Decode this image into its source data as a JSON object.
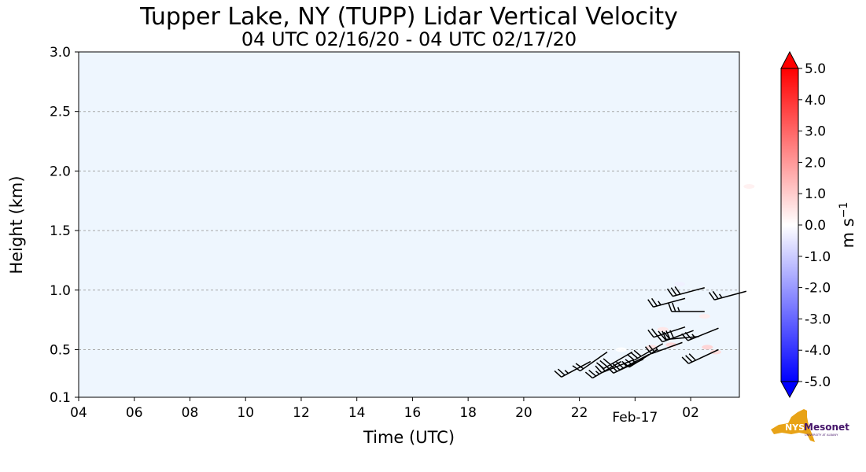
{
  "chart_data": {
    "type": "heatmap",
    "title": "Tupper Lake, NY (TUPP) Lidar Vertical Velocity",
    "subtitle": "04 UTC 02/16/20 - 04 UTC 02/17/20",
    "xlabel": "Time (UTC)",
    "ylabel": "Height (km)",
    "x_range_hours_since_04utc": [
      0,
      23.75
    ],
    "ylim": [
      0.1,
      3.0
    ],
    "x_ticks": [
      {
        "label": "04",
        "h": 0
      },
      {
        "label": "06",
        "h": 2
      },
      {
        "label": "08",
        "h": 4
      },
      {
        "label": "10",
        "h": 6
      },
      {
        "label": "12",
        "h": 8
      },
      {
        "label": "14",
        "h": 10
      },
      {
        "label": "16",
        "h": 12
      },
      {
        "label": "18",
        "h": 14
      },
      {
        "label": "20",
        "h": 16
      },
      {
        "label": "22",
        "h": 18
      },
      {
        "label": "02",
        "h": 22
      }
    ],
    "x_date_label": {
      "label": "Feb-17",
      "h": 20
    },
    "y_ticks": [
      {
        "label": "0.1",
        "v": 0.1
      },
      {
        "label": "0.5",
        "v": 0.5
      },
      {
        "label": "1.0",
        "v": 1.0
      },
      {
        "label": "1.5",
        "v": 1.5
      },
      {
        "label": "2.0",
        "v": 2.0
      },
      {
        "label": "2.5",
        "v": 2.5
      },
      {
        "label": "3.0",
        "v": 3.0
      }
    ],
    "grid": "y-dashed",
    "background_color": "#eef6fe",
    "colorbar": {
      "label": "m s",
      "label_exponent": "−1",
      "min": -5.0,
      "max": 5.0,
      "ticks": [
        "5.0",
        "4.0",
        "3.0",
        "2.0",
        "1.0",
        "0.0",
        "-1.0",
        "-2.0",
        "-3.0",
        "-4.0",
        "-5.0"
      ],
      "colormap": "bwr",
      "extend": "both"
    },
    "wind_barbs": [
      {
        "t": 18.4,
        "h": 0.4,
        "dir": 242,
        "speed": 25
      },
      {
        "t": 19.0,
        "h": 0.48,
        "dir": 235,
        "speed": 20
      },
      {
        "t": 19.5,
        "h": 0.4,
        "dir": 240,
        "speed": 25
      },
      {
        "t": 19.9,
        "h": 0.48,
        "dir": 240,
        "speed": 30
      },
      {
        "t": 19.9,
        "h": 0.41,
        "dir": 248,
        "speed": 20
      },
      {
        "t": 20.3,
        "h": 0.42,
        "dir": 245,
        "speed": 20
      },
      {
        "t": 20.5,
        "h": 0.46,
        "dir": 242,
        "speed": 25
      },
      {
        "t": 20.8,
        "h": 0.5,
        "dir": 238,
        "speed": 25
      },
      {
        "t": 21.0,
        "h": 0.55,
        "dir": 240,
        "speed": 30
      },
      {
        "t": 21.7,
        "h": 0.56,
        "dir": 250,
        "speed": 25
      },
      {
        "t": 21.8,
        "h": 0.69,
        "dir": 252,
        "speed": 25
      },
      {
        "t": 22.1,
        "h": 0.66,
        "dir": 250,
        "speed": 30
      },
      {
        "t": 21.8,
        "h": 0.93,
        "dir": 255,
        "speed": 25
      },
      {
        "t": 22.5,
        "h": 1.02,
        "dir": 255,
        "speed": 30
      },
      {
        "t": 22.5,
        "h": 0.82,
        "dir": 270,
        "speed": 25
      },
      {
        "t": 22.3,
        "h": 0.61,
        "dir": 265,
        "speed": 30
      },
      {
        "t": 23.0,
        "h": 0.68,
        "dir": 248,
        "speed": 25
      },
      {
        "t": 23.0,
        "h": 0.5,
        "dir": 245,
        "speed": 30
      },
      {
        "t": 24.0,
        "h": 0.99,
        "dir": 255,
        "speed": 25
      }
    ],
    "velocity_patches": [
      {
        "t": 19.5,
        "h": 0.5,
        "w": 0.0
      },
      {
        "t": 20.6,
        "h": 0.52,
        "w": 0.6
      },
      {
        "t": 21.3,
        "h": 0.54,
        "w": 0.8
      },
      {
        "t": 21.0,
        "h": 0.67,
        "w": 0.5
      },
      {
        "t": 22.6,
        "h": 0.52,
        "w": 0.9
      },
      {
        "t": 22.9,
        "h": 0.48,
        "w": 0.7
      },
      {
        "t": 24.1,
        "h": 1.87,
        "w": 0.3
      },
      {
        "t": 21.6,
        "h": 1.05,
        "w": -0.3
      },
      {
        "t": 22.5,
        "h": 0.78,
        "w": 0.4
      }
    ]
  },
  "logo": {
    "name": "NYS Mesonet",
    "text_nys": "NYS",
    "text_mesonet": "Mesonet",
    "text_org": "UNIVERSITY AT ALBANY",
    "state_color": "#e8a317",
    "text_color": "#46166b"
  }
}
